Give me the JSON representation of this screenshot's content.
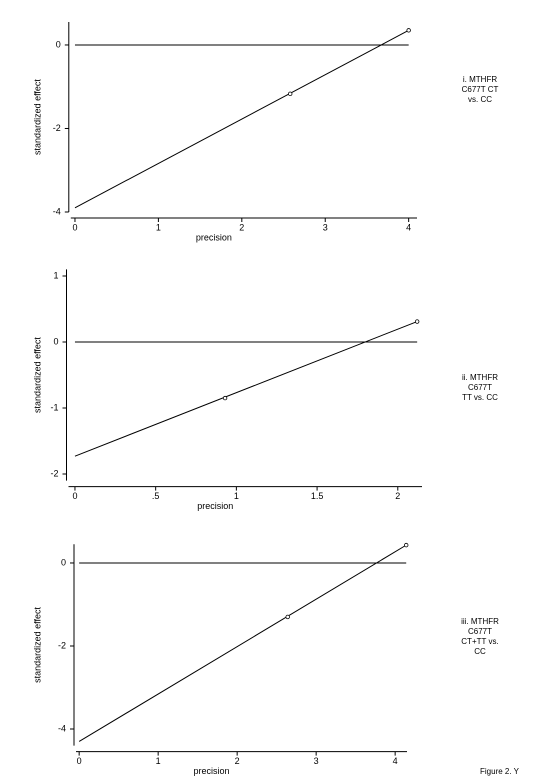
{
  "figure_label": "Figure 2. Y",
  "chart_data": [
    {
      "type": "scatter",
      "x": [
        2.58,
        4.0
      ],
      "values": [
        -1.17,
        0.35
      ],
      "color": "#000000",
      "fit_line": {
        "x": [
          0,
          4.0
        ],
        "values": [
          -3.9,
          0.35
        ]
      },
      "hline": 0,
      "xlim": [
        -0.05,
        4.1
      ],
      "ylim": [
        -4,
        0.55
      ],
      "xticks": [
        0,
        1,
        2,
        3,
        4
      ],
      "yticks": [
        -4,
        -2,
        0
      ],
      "xlabel": "precision",
      "ylabel": "standardized effect",
      "annotation": [
        "i. MTHFR",
        "C677T    CT",
        "vs. CC"
      ]
    },
    {
      "type": "scatter",
      "x": [
        0.93,
        2.12
      ],
      "values": [
        -0.85,
        0.31
      ],
      "color": "#000000",
      "fit_line": {
        "x": [
          0,
          2.12
        ],
        "values": [
          -1.73,
          0.31
        ]
      },
      "hline": 0,
      "xlim": [
        -0.04,
        2.15
      ],
      "ylim": [
        -2.1,
        1.1
      ],
      "xticks": [
        0,
        {
          "value": 0.5,
          "label": ".5"
        },
        1,
        1.5,
        2
      ],
      "yticks": [
        -2,
        -1,
        0,
        1
      ],
      "xlabel": "precision",
      "ylabel": "standardized effect",
      "annotation": [
        "ii. MTHFR",
        "C677T",
        "TT vs. CC"
      ]
    },
    {
      "type": "scatter",
      "x": [
        2.64,
        4.14
      ],
      "values": [
        -1.3,
        0.43
      ],
      "color": "#000000",
      "fit_line": {
        "x": [
          0,
          4.14
        ],
        "values": [
          -4.3,
          0.43
        ]
      },
      "hline": 0,
      "xlim": [
        -0.04,
        4.15
      ],
      "ylim": [
        -4.4,
        0.45
      ],
      "xticks": [
        0,
        1,
        2,
        3,
        4
      ],
      "yticks": [
        -4,
        -2,
        0
      ],
      "xlabel": "precision",
      "ylabel": "standardized effect",
      "annotation": [
        "iii. MTHFR",
        "C677T",
        "CT+TT vs.",
        "CC"
      ]
    }
  ]
}
